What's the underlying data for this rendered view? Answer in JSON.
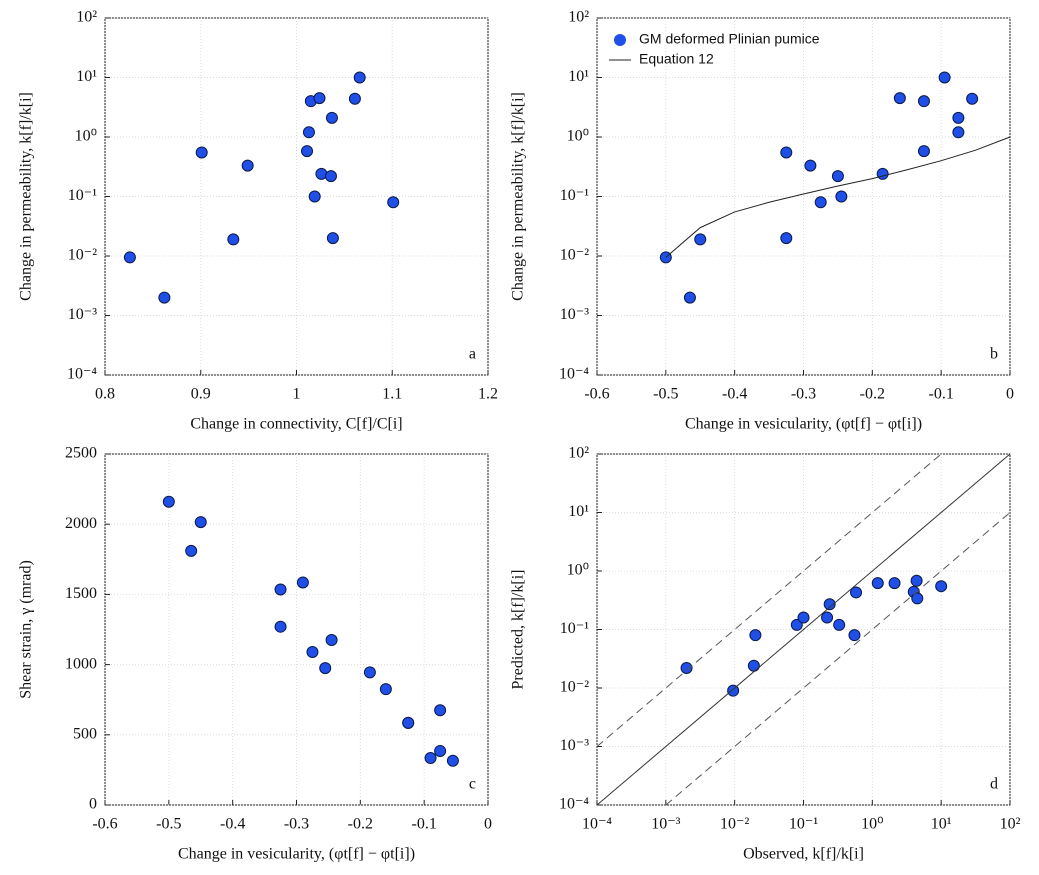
{
  "chart_data": [
    {
      "type": "scatter",
      "annotation": "a",
      "x_label": "Change in connectivity, C[f]/C[i]",
      "y_label": "Change in permeability, k[f]/k[i]",
      "xlim": [
        0.8,
        1.2
      ],
      "xticks": [
        0.8,
        0.9,
        1,
        1.1,
        1.2
      ],
      "ylim": [
        0.0001,
        100
      ],
      "ylog": true,
      "grid": true,
      "yticks": [
        {
          "value": 0.0001,
          "label": "10⁻⁴"
        },
        {
          "value": 0.001,
          "label": "10⁻³"
        },
        {
          "value": 0.01,
          "label": "10⁻²"
        },
        {
          "value": 0.1,
          "label": "10⁻¹"
        },
        {
          "value": 1,
          "label": "10⁰"
        },
        {
          "value": 10,
          "label": "10¹"
        },
        {
          "value": 100,
          "label": "10²"
        }
      ],
      "series": [
        {
          "color": "#1f4fe6",
          "mark": "point",
          "x": [
            0.826,
            0.862,
            0.901,
            0.934,
            0.949,
            1.011,
            1.013,
            1.015,
            1.024,
            1.019,
            1.026,
            1.036,
            1.037,
            1.038,
            1.061,
            1.066,
            1.101
          ],
          "values": [
            0.0095,
            0.002,
            0.55,
            0.019,
            0.33,
            0.58,
            1.2,
            4.0,
            4.5,
            0.1,
            0.24,
            0.22,
            2.1,
            0.02,
            4.4,
            10,
            0.08
          ]
        }
      ]
    },
    {
      "type": "scatter",
      "annotation": "b",
      "x_label": "Change in vesicularity, (φt[f] − φt[i])",
      "y_label": "Change in permeability, k[f]/k[i]",
      "xlim": [
        -0.6,
        0
      ],
      "xticks": [
        -0.6,
        -0.5,
        -0.4,
        -0.3,
        -0.2,
        -0.1,
        0
      ],
      "ylim": [
        0.0001,
        100
      ],
      "ylog": true,
      "grid": true,
      "legend": "upper left",
      "yticks": [
        {
          "value": 0.0001,
          "label": "10⁻⁴"
        },
        {
          "value": 0.001,
          "label": "10⁻³"
        },
        {
          "value": 0.01,
          "label": "10⁻²"
        },
        {
          "value": 0.1,
          "label": "10⁻¹"
        },
        {
          "value": 1,
          "label": "10⁰"
        },
        {
          "value": 10,
          "label": "10¹"
        },
        {
          "value": 100,
          "label": "10²"
        }
      ],
      "series": [
        {
          "name": "GM deformed Plinian pumice",
          "color": "#1f4fe6",
          "mark": "point",
          "x": [
            -0.5,
            -0.45,
            -0.465,
            -0.325,
            -0.29,
            -0.325,
            -0.275,
            -0.25,
            -0.245,
            -0.185,
            -0.16,
            -0.125,
            -0.125,
            -0.095,
            -0.075,
            -0.075,
            -0.055
          ],
          "values": [
            0.0095,
            0.019,
            0.002,
            0.55,
            0.33,
            0.02,
            0.08,
            0.22,
            0.1,
            0.24,
            4.5,
            4.0,
            0.58,
            10,
            2.1,
            1.2,
            4.4
          ]
        },
        {
          "name": "Equation 12",
          "color": "#222222",
          "mark": "line",
          "x": [
            -0.5,
            -0.45,
            -0.4,
            -0.35,
            -0.3,
            -0.25,
            -0.2,
            -0.15,
            -0.1,
            -0.05,
            0
          ],
          "values": [
            0.0095,
            0.03,
            0.055,
            0.08,
            0.11,
            0.15,
            0.2,
            0.28,
            0.4,
            0.6,
            1.0
          ]
        }
      ]
    },
    {
      "type": "scatter",
      "annotation": "c",
      "x_label": "Change in vesicularity, (φt[f] − φt[i])",
      "y_label": "Shear strain, γ (mrad)",
      "xlim": [
        -0.6,
        0
      ],
      "xticks": [
        -0.6,
        -0.5,
        -0.4,
        -0.3,
        -0.2,
        -0.1,
        0
      ],
      "ylim": [
        0,
        2500
      ],
      "yticks": [
        0,
        500,
        1000,
        1500,
        2000,
        2500
      ],
      "grid": true,
      "series": [
        {
          "color": "#1f4fe6",
          "mark": "point",
          "x": [
            -0.5,
            -0.465,
            -0.45,
            -0.325,
            -0.325,
            -0.29,
            -0.275,
            -0.255,
            -0.245,
            -0.185,
            -0.16,
            -0.125,
            -0.125,
            -0.075,
            -0.075,
            -0.09,
            -0.055
          ],
          "values": [
            2160,
            1810,
            2015,
            1535,
            1270,
            1585,
            1090,
            975,
            1175,
            945,
            825,
            585,
            585,
            675,
            385,
            335,
            315
          ]
        }
      ]
    },
    {
      "type": "scatter",
      "annotation": "d",
      "x_label": "Observed, k[f]/k[i]",
      "y_label": "Predicted, k[f]/k[i]",
      "xlim": [
        0.0001,
        100
      ],
      "xlog": true,
      "ylim": [
        0.0001,
        100
      ],
      "ylog": true,
      "grid": true,
      "xticks": [
        {
          "value": 0.0001,
          "label": "10⁻⁴"
        },
        {
          "value": 0.001,
          "label": "10⁻³"
        },
        {
          "value": 0.01,
          "label": "10⁻²"
        },
        {
          "value": 0.1,
          "label": "10⁻¹"
        },
        {
          "value": 1,
          "label": "10⁰"
        },
        {
          "value": 10,
          "label": "10¹"
        },
        {
          "value": 100,
          "label": "10²"
        }
      ],
      "yticks": [
        {
          "value": 0.0001,
          "label": "10⁻⁴"
        },
        {
          "value": 0.001,
          "label": "10⁻³"
        },
        {
          "value": 0.01,
          "label": "10⁻²"
        },
        {
          "value": 0.1,
          "label": "10⁻¹"
        },
        {
          "value": 1,
          "label": "10⁰"
        },
        {
          "value": 10,
          "label": "10¹"
        },
        {
          "value": 100,
          "label": "10²"
        }
      ],
      "series": [
        {
          "color": "#1f4fe6",
          "mark": "point",
          "x": [
            0.002,
            0.0095,
            0.019,
            0.02,
            0.08,
            0.1,
            0.22,
            0.24,
            0.33,
            0.55,
            0.58,
            1.2,
            2.1,
            4.0,
            4.4,
            4.5,
            10
          ],
          "values": [
            0.022,
            0.009,
            0.024,
            0.08,
            0.12,
            0.16,
            0.16,
            0.27,
            0.12,
            0.08,
            0.43,
            0.62,
            0.62,
            0.44,
            0.68,
            0.34,
            0.55
          ]
        },
        {
          "color": "#333333",
          "mark": "line",
          "x": [
            0.0001,
            100
          ],
          "values": [
            0.0001,
            100
          ]
        },
        {
          "color": "#555555",
          "mark": "line",
          "dash": true,
          "x": [
            0.0001,
            10
          ],
          "values": [
            0.001,
            100
          ]
        },
        {
          "color": "#555555",
          "mark": "line",
          "dash": true,
          "x": [
            0.001,
            100
          ],
          "values": [
            0.0001,
            10
          ]
        }
      ]
    }
  ]
}
